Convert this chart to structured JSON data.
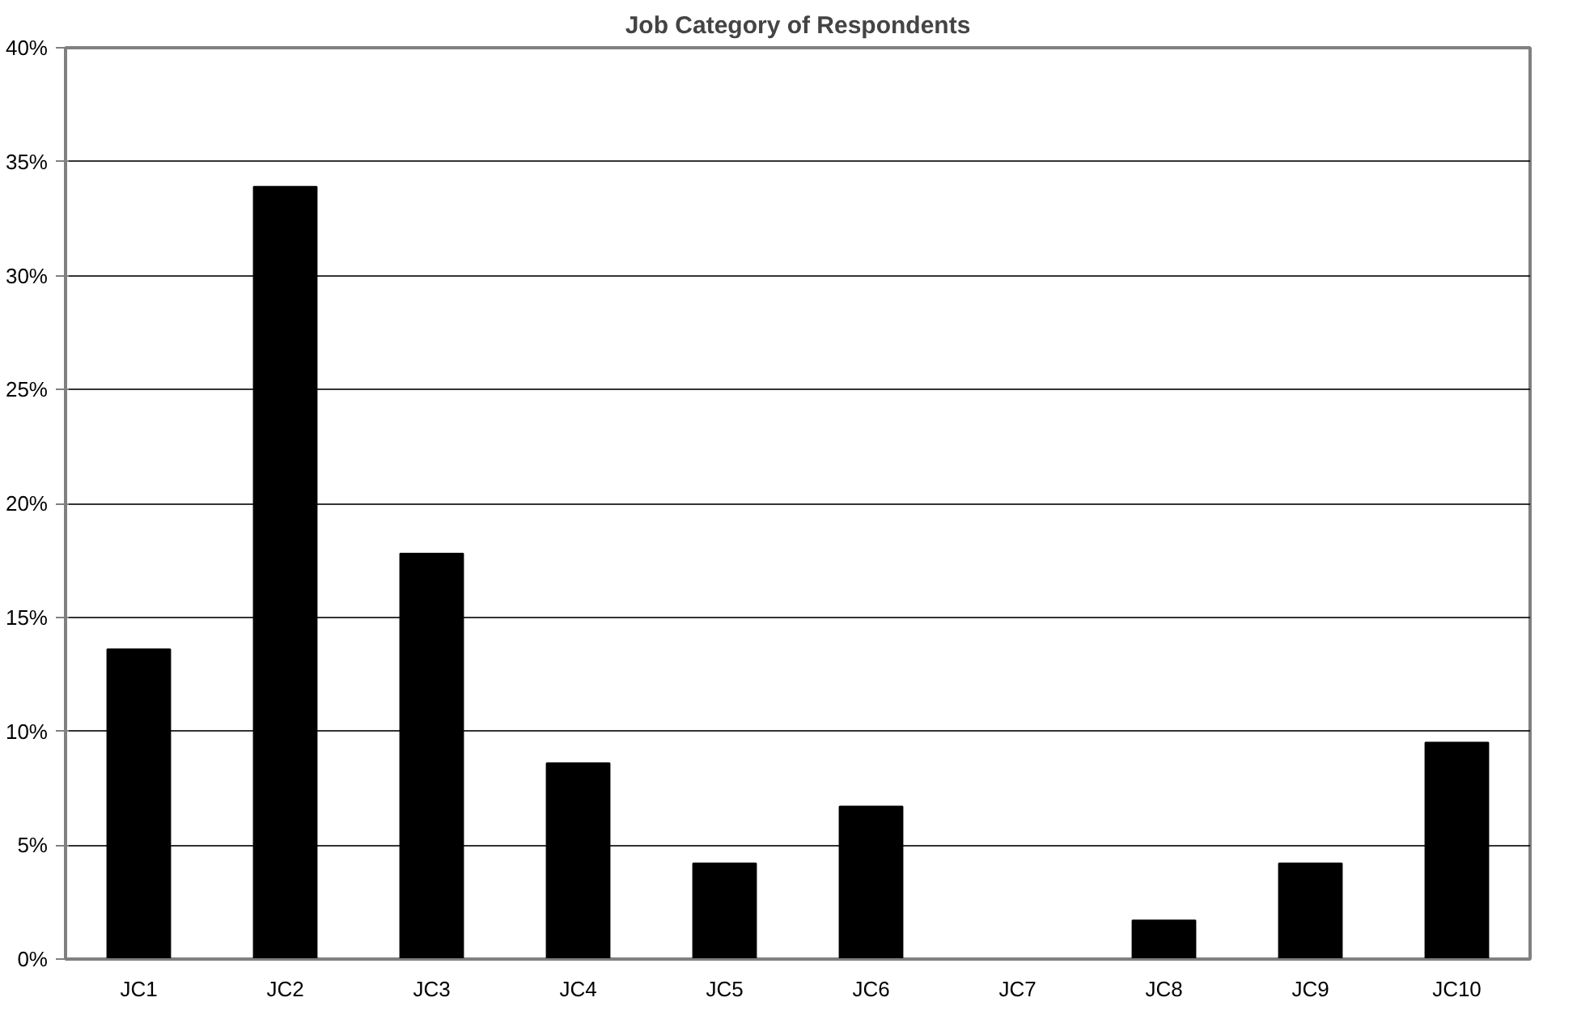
{
  "chart_data": {
    "type": "bar",
    "title": "Job Category of Respondents",
    "categories": [
      "JC1",
      "JC2",
      "JC3",
      "JC4",
      "JC5",
      "JC6",
      "JC7",
      "JC8",
      "JC9",
      "JC10"
    ],
    "values": [
      13.6,
      33.9,
      17.8,
      8.6,
      4.2,
      6.7,
      0,
      1.7,
      4.2,
      9.5
    ],
    "color": "#000000",
    "ylim": [
      0,
      40
    ],
    "yticks": [
      {
        "value": 0,
        "label": "0%"
      },
      {
        "value": 5,
        "label": "5%"
      },
      {
        "value": 10,
        "label": "10%"
      },
      {
        "value": 15,
        "label": "15%"
      },
      {
        "value": 20,
        "label": "20%"
      },
      {
        "value": 25,
        "label": "25%"
      },
      {
        "value": 30,
        "label": "30%"
      },
      {
        "value": 35,
        "label": "35%"
      },
      {
        "value": 40,
        "label": "40%"
      }
    ],
    "grid": "y"
  }
}
